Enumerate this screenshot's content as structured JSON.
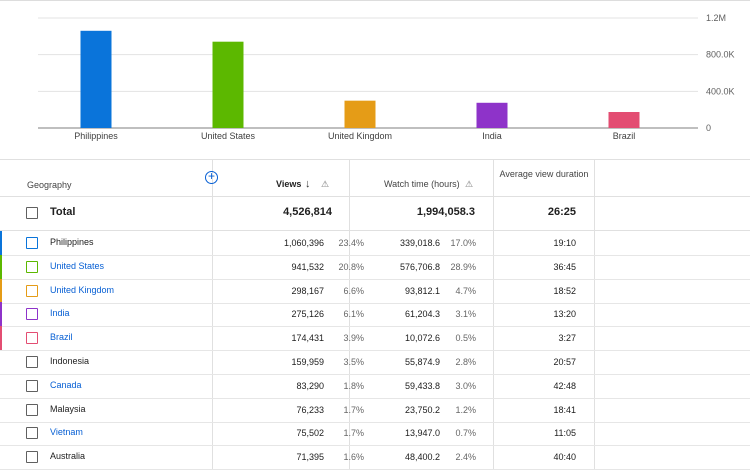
{
  "chart_data": {
    "type": "bar",
    "categories": [
      "Philippines",
      "United States",
      "United Kingdom",
      "India",
      "Brazil"
    ],
    "values": [
      1060396,
      941532,
      298167,
      275126,
      174431
    ],
    "colors": [
      "#0a74da",
      "#5cb800",
      "#e59c17",
      "#8e33c9",
      "#e34d72"
    ],
    "ytick_labels": [
      "1.2M",
      "800.0K",
      "400.0K",
      "0"
    ],
    "ytick_values": [
      1200000,
      800000,
      400000,
      0
    ],
    "ylim": [
      0,
      1200000
    ],
    "grid": true
  },
  "table": {
    "header": {
      "geography": "Geography",
      "views": "Views",
      "watch_time": "Watch time (hours)",
      "avg_view_duration": "Average view duration"
    },
    "total": {
      "label": "Total",
      "views": "4,526,814",
      "watch_time": "1,994,058.3",
      "avg_duration": "26:25"
    },
    "rows": [
      {
        "name": "Philippines",
        "views": "1,060,396",
        "views_pct": "23.4%",
        "watch": "339,018.6",
        "watch_pct": "17.0%",
        "avd": "19:10",
        "color": "#0a74da",
        "checkbox_color": "#0a74da",
        "link": false
      },
      {
        "name": "United States",
        "views": "941,532",
        "views_pct": "20.8%",
        "watch": "576,706.8",
        "watch_pct": "28.9%",
        "avd": "36:45",
        "color": "#5cb800",
        "checkbox_color": "#5cb800",
        "link": true
      },
      {
        "name": "United Kingdom",
        "views": "298,167",
        "views_pct": "6.6%",
        "watch": "93,812.1",
        "watch_pct": "4.7%",
        "avd": "18:52",
        "color": "#e59c17",
        "checkbox_color": "#e59c17",
        "link": true
      },
      {
        "name": "India",
        "views": "275,126",
        "views_pct": "6.1%",
        "watch": "61,204.3",
        "watch_pct": "3.1%",
        "avd": "13:20",
        "color": "#8e33c9",
        "checkbox_color": "#8e33c9",
        "link": true
      },
      {
        "name": "Brazil",
        "views": "174,431",
        "views_pct": "3.9%",
        "watch": "10,072.6",
        "watch_pct": "0.5%",
        "avd": "3:27",
        "color": "#e34d72",
        "checkbox_color": "#e34d72",
        "link": true
      },
      {
        "name": "Indonesia",
        "views": "159,959",
        "views_pct": "3.5%",
        "watch": "55,874.9",
        "watch_pct": "2.8%",
        "avd": "20:57",
        "color": "",
        "checkbox_color": "#606060",
        "link": false
      },
      {
        "name": "Canada",
        "views": "83,290",
        "views_pct": "1.8%",
        "watch": "59,433.8",
        "watch_pct": "3.0%",
        "avd": "42:48",
        "color": "",
        "checkbox_color": "#606060",
        "link": true
      },
      {
        "name": "Malaysia",
        "views": "76,233",
        "views_pct": "1.7%",
        "watch": "23,750.2",
        "watch_pct": "1.2%",
        "avd": "18:41",
        "color": "",
        "checkbox_color": "#606060",
        "link": false
      },
      {
        "name": "Vietnam",
        "views": "75,502",
        "views_pct": "1.7%",
        "watch": "13,947.0",
        "watch_pct": "0.7%",
        "avd": "11:05",
        "color": "",
        "checkbox_color": "#606060",
        "link": true
      },
      {
        "name": "Australia",
        "views": "71,395",
        "views_pct": "1.6%",
        "watch": "48,400.2",
        "watch_pct": "2.4%",
        "avd": "40:40",
        "color": "",
        "checkbox_color": "#606060",
        "link": false
      }
    ]
  },
  "icons": {
    "sort": "arrow-down-icon",
    "warning": "warning-icon",
    "add_column": "plus-circle-icon"
  }
}
